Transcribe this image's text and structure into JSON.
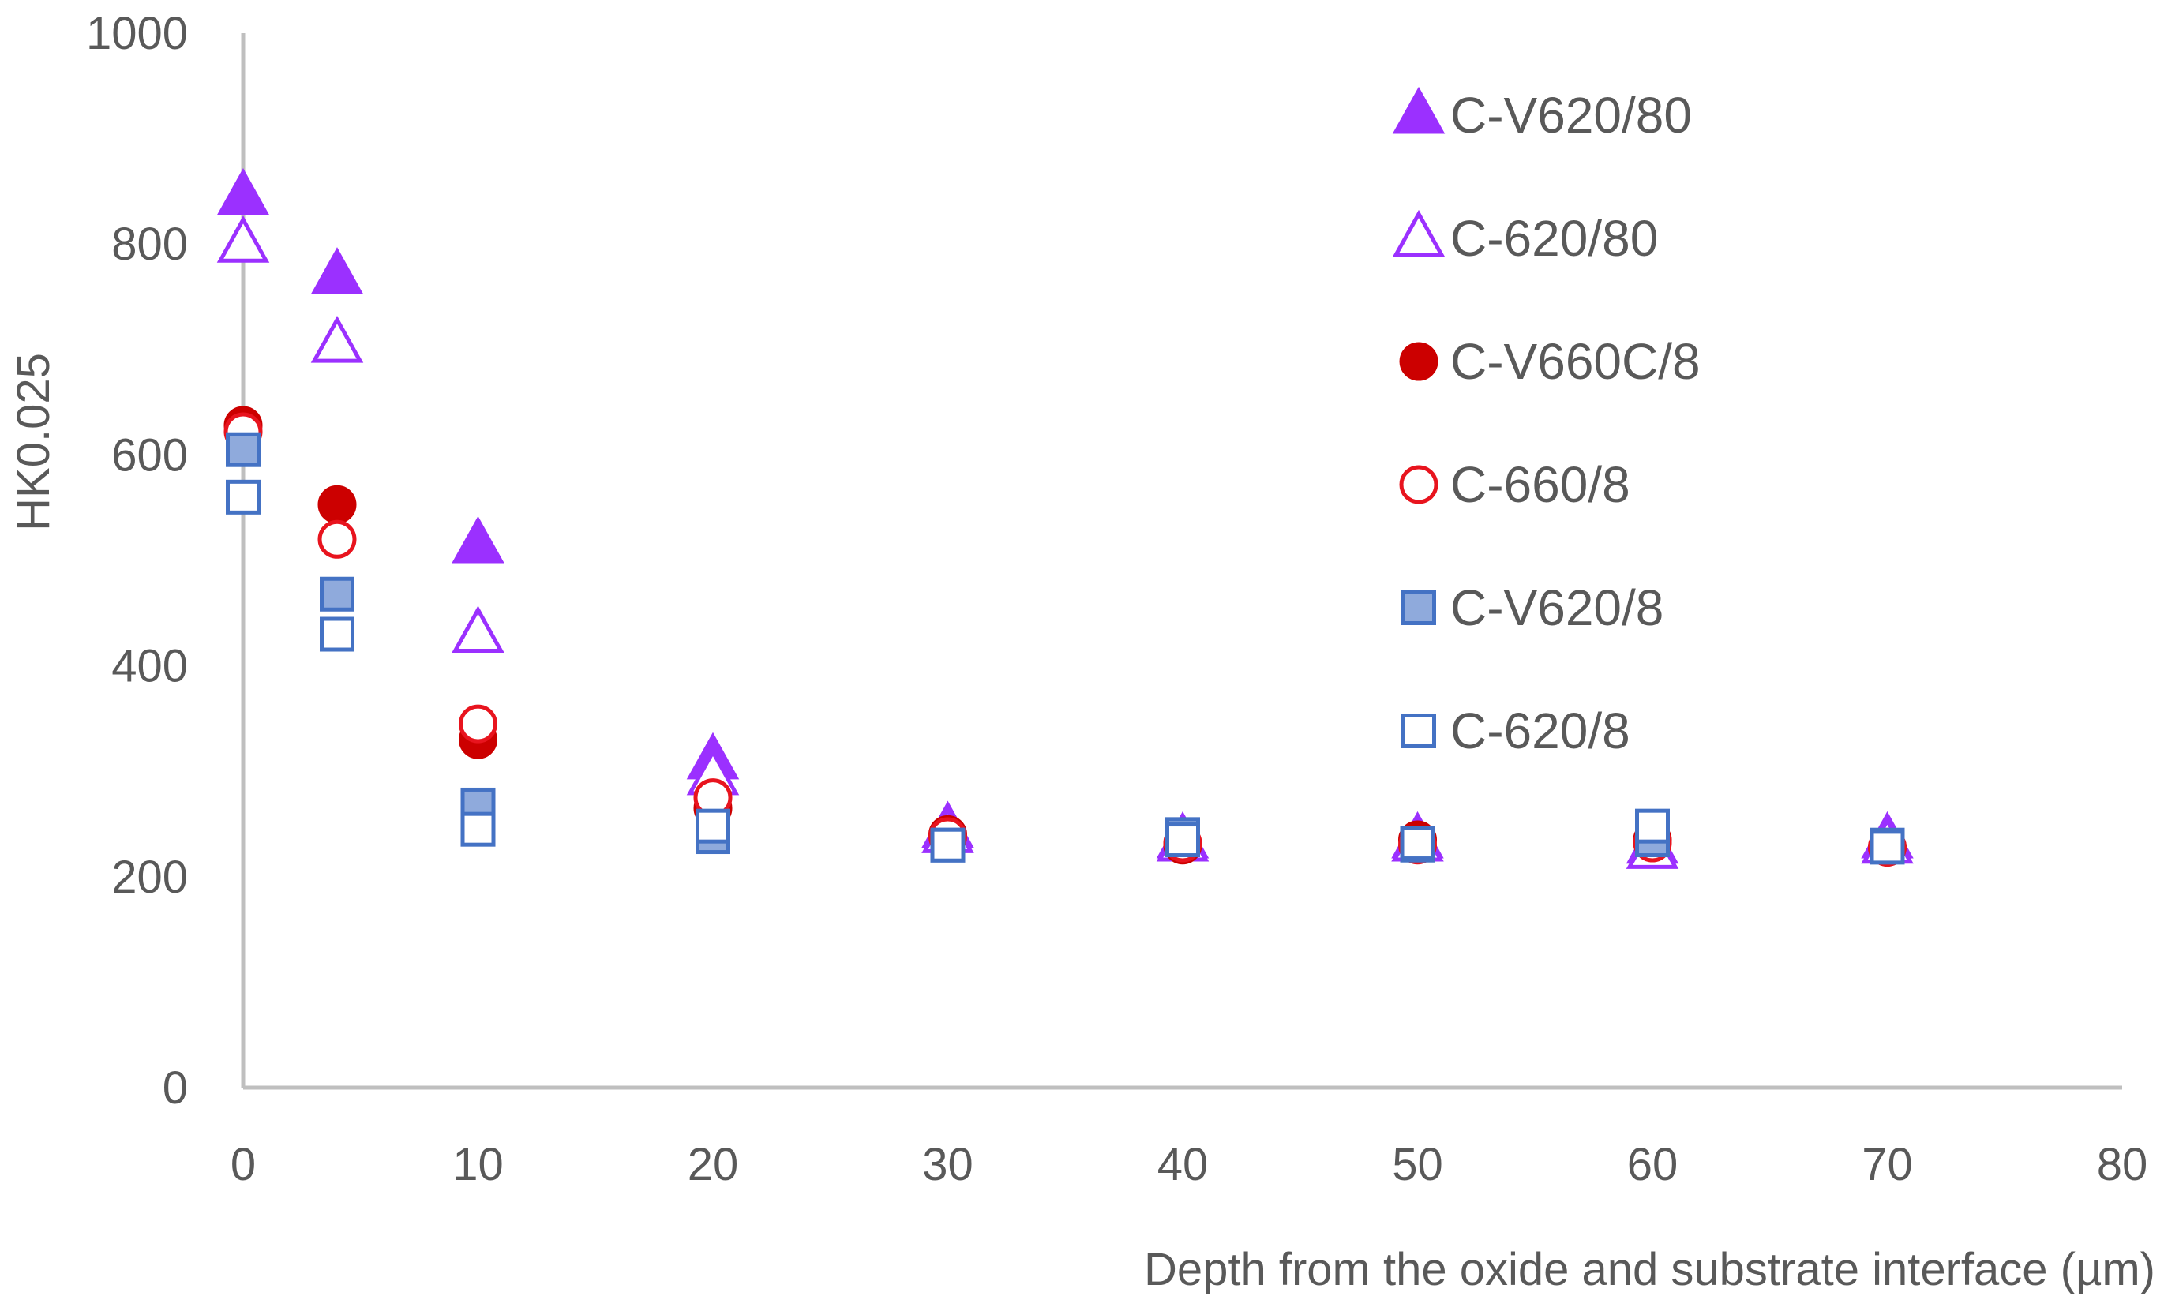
{
  "chart_data": {
    "type": "scatter",
    "xlabel": "Depth from the oxide and substrate interface (µm)",
    "ylabel": "HK0.025",
    "xlim": [
      0,
      80
    ],
    "ylim": [
      0,
      1000
    ],
    "xticks": [
      0,
      10,
      20,
      30,
      40,
      50,
      60,
      70,
      80
    ],
    "yticks": [
      0,
      200,
      400,
      600,
      800,
      1000
    ],
    "grid": false,
    "legend_position": "top-right",
    "series": [
      {
        "name": "C-V620/80",
        "marker": "triangle",
        "filled": true,
        "color": "#9B30FF",
        "x": [
          0,
          4,
          10,
          20,
          30,
          40,
          50,
          60,
          70
        ],
        "y": [
          845,
          770,
          515,
          310,
          245,
          235,
          235,
          230,
          235
        ]
      },
      {
        "name": "C-620/80",
        "marker": "triangle",
        "filled": false,
        "color": "#9B30FF",
        "x": [
          0,
          4,
          10,
          20,
          30,
          40,
          50,
          60,
          70
        ],
        "y": [
          800,
          705,
          430,
          295,
          240,
          232,
          232,
          225,
          230
        ]
      },
      {
        "name": "C-V660C/8",
        "marker": "circle",
        "filled": true,
        "color": "#CC0000",
        "x": [
          0,
          4,
          10,
          20,
          30,
          40,
          50,
          60,
          70
        ],
        "y": [
          628,
          553,
          330,
          265,
          240,
          230,
          235,
          235,
          228
        ]
      },
      {
        "name": "C-660/8",
        "marker": "circle",
        "filled": false,
        "color": "#E8141E",
        "x": [
          0,
          4,
          10,
          20,
          30,
          40,
          50,
          60,
          70
        ],
        "y": [
          622,
          520,
          345,
          275,
          238,
          232,
          230,
          232,
          228
        ]
      },
      {
        "name": "C-V620/8",
        "marker": "square",
        "filled": true,
        "color": "#4472C4",
        "fill": "#8FAADC",
        "x": [
          0,
          4,
          10,
          20,
          30,
          40,
          50,
          60,
          70
        ],
        "y": [
          605,
          468,
          268,
          238,
          230,
          240,
          230,
          235,
          230
        ]
      },
      {
        "name": "C-620/8",
        "marker": "square",
        "filled": false,
        "color": "#4472C4",
        "x": [
          0,
          4,
          10,
          20,
          30,
          40,
          50,
          60,
          70
        ],
        "y": [
          560,
          430,
          245,
          248,
          230,
          235,
          232,
          248,
          228
        ]
      }
    ]
  }
}
